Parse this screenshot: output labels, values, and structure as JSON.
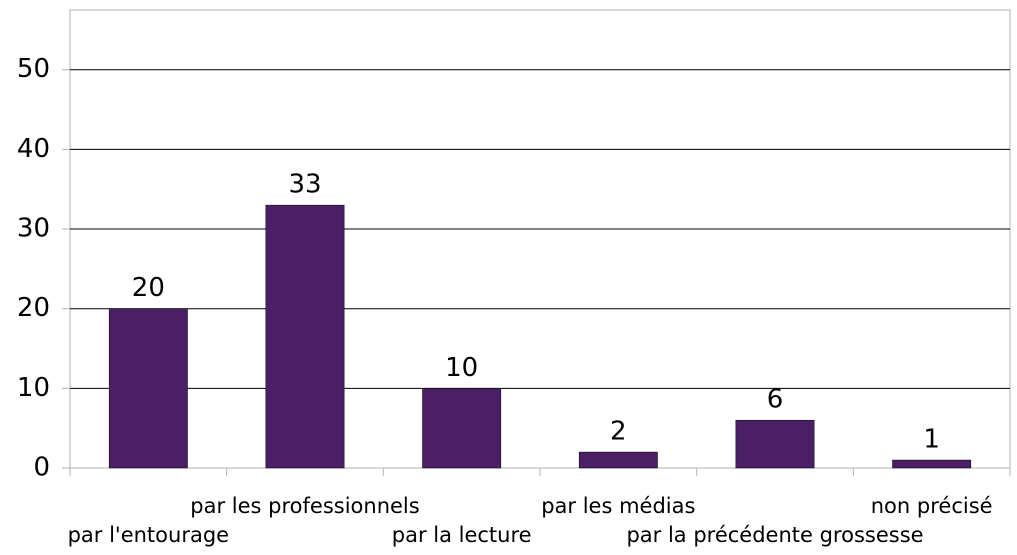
{
  "chart_data": {
    "type": "bar",
    "categories": [
      "par l'entourage",
      "par les professionnels",
      "par la lecture",
      "par les médias",
      "par la précédente grossesse",
      "non précisé"
    ],
    "values": [
      20,
      33,
      10,
      2,
      6,
      1
    ],
    "color": "#4a1f68",
    "ylim": [
      0,
      57.5
    ],
    "yticks": [
      0,
      10,
      20,
      30,
      40,
      50
    ],
    "grid": true
  }
}
